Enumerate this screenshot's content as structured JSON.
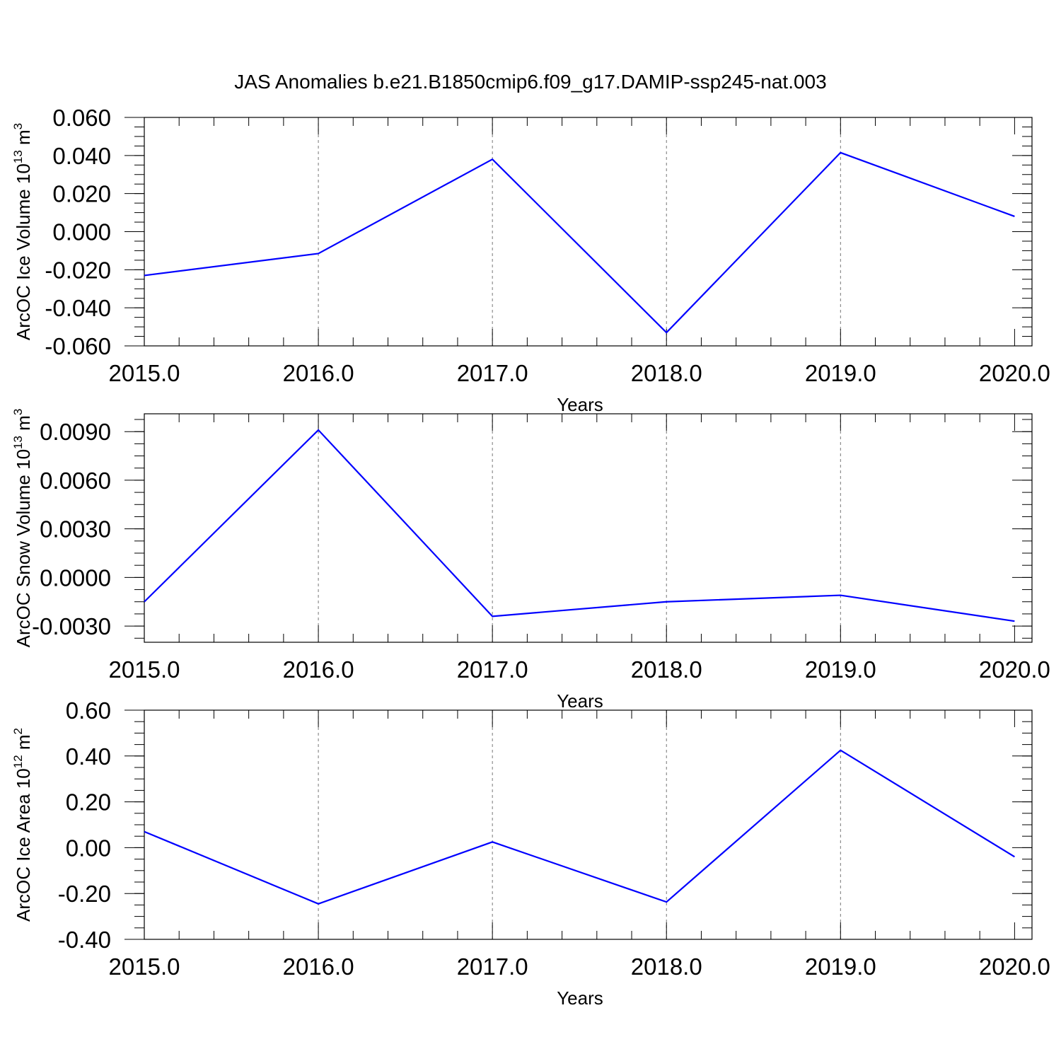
{
  "figure": {
    "title": "JAS Anomalies b.e21.B1850cmip6.f09_g17.DAMIP-ssp245-nat.003",
    "line_color": "#0000ff"
  },
  "chart_data": [
    {
      "type": "line",
      "title": "",
      "xlabel": "Years",
      "ylabel": {
        "base": "ArcOC Ice Volume 10",
        "exponent": "13",
        "unit": " m",
        "unit_exponent": "3"
      },
      "x": [
        2015,
        2016,
        2017,
        2018,
        2019,
        2020
      ],
      "xlim": [
        2015,
        2020.1
      ],
      "xticks": [
        2015,
        2016,
        2017,
        2018,
        2019,
        2020
      ],
      "xtick_labels": [
        "2015.0",
        "2016.0",
        "2017.0",
        "2018.0",
        "2019.0",
        "2020.0"
      ],
      "ylim": [
        -0.06,
        0.06
      ],
      "yticks": [
        -0.06,
        -0.04,
        -0.02,
        0.0,
        0.02,
        0.04,
        0.06
      ],
      "ytick_labels": [
        "-0.060",
        "-0.040",
        "-0.020",
        "0.000",
        "0.020",
        "0.040",
        "0.060"
      ],
      "grid": "vertical dashed at major x ticks",
      "series": [
        {
          "values": [
            -0.023,
            -0.0115,
            0.038,
            -0.053,
            0.0415,
            0.008
          ]
        }
      ]
    },
    {
      "type": "line",
      "title": "",
      "xlabel": "Years",
      "ylabel": {
        "base": "ArcOC Snow Volume 10",
        "exponent": "13",
        "unit": " m",
        "unit_exponent": "3"
      },
      "x": [
        2015,
        2016,
        2017,
        2018,
        2019,
        2020
      ],
      "xlim": [
        2015,
        2020.1
      ],
      "xticks": [
        2015,
        2016,
        2017,
        2018,
        2019,
        2020
      ],
      "xtick_labels": [
        "2015.0",
        "2016.0",
        "2017.0",
        "2018.0",
        "2019.0",
        "2020.0"
      ],
      "ylim": [
        -0.004,
        0.0101
      ],
      "yticks": [
        -0.003,
        0.0,
        0.003,
        0.006,
        0.009
      ],
      "ytick_labels": [
        "-0.0030",
        "0.0000",
        "0.0030",
        "0.0060",
        "0.0090"
      ],
      "grid": "vertical dashed at major x ticks",
      "series": [
        {
          "values": [
            -0.0015,
            0.0091,
            -0.0024,
            -0.0015,
            -0.0011,
            -0.0027
          ]
        }
      ]
    },
    {
      "type": "line",
      "title": "",
      "xlabel": "Years",
      "ylabel": {
        "base": "ArcOC Ice Area 10",
        "exponent": "12",
        "unit": " m",
        "unit_exponent": "2"
      },
      "x": [
        2015,
        2016,
        2017,
        2018,
        2019,
        2020
      ],
      "xlim": [
        2015,
        2020.1
      ],
      "xticks": [
        2015,
        2016,
        2017,
        2018,
        2019,
        2020
      ],
      "xtick_labels": [
        "2015.0",
        "2016.0",
        "2017.0",
        "2018.0",
        "2019.0",
        "2020.0"
      ],
      "ylim": [
        -0.4,
        0.6
      ],
      "yticks": [
        -0.4,
        -0.2,
        0.0,
        0.2,
        0.4,
        0.6
      ],
      "ytick_labels": [
        "-0.40",
        "-0.20",
        "0.00",
        "0.20",
        "0.40",
        "0.60"
      ],
      "grid": "vertical dashed at major x ticks",
      "series": [
        {
          "values": [
            0.07,
            -0.245,
            0.025,
            -0.237,
            0.425,
            -0.04
          ]
        }
      ]
    }
  ]
}
